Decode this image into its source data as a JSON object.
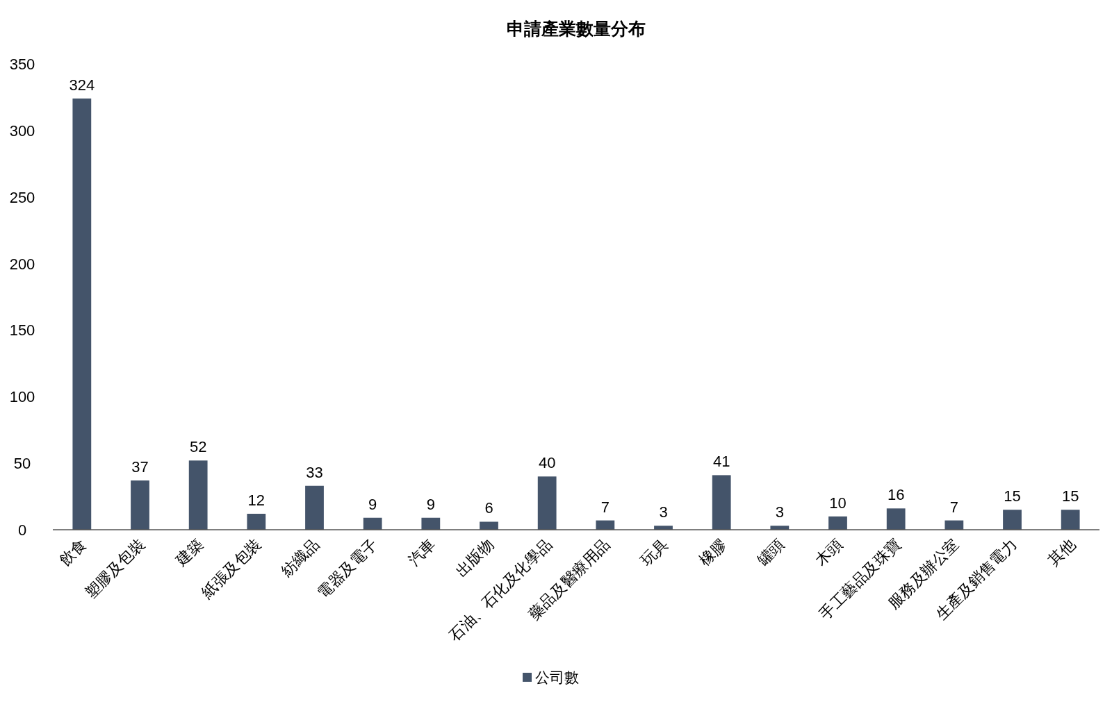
{
  "chart_data": {
    "type": "bar",
    "title": "申請產業數量分布",
    "categories": [
      "飲食",
      "塑膠及包裝",
      "建築",
      "紙張及包裝",
      "紡織品",
      "電器及電子",
      "汽車",
      "出版物",
      "石油、石化及化學品",
      "藥品及醫療用品",
      "玩具",
      "橡膠",
      "罐頭",
      "木頭",
      "手工藝品及珠寶",
      "服務及辦公室",
      "生產及銷售電力",
      "其他"
    ],
    "series": [
      {
        "name": "公司數",
        "color": "#44546a",
        "values": [
          324,
          37,
          52,
          12,
          33,
          9,
          9,
          6,
          40,
          7,
          3,
          41,
          3,
          10,
          16,
          7,
          15,
          15
        ]
      }
    ],
    "ylim": [
      0,
      350
    ],
    "yticks": [
      0,
      50,
      100,
      150,
      200,
      250,
      300,
      350
    ],
    "data_labels": true,
    "legend": "bottom"
  }
}
